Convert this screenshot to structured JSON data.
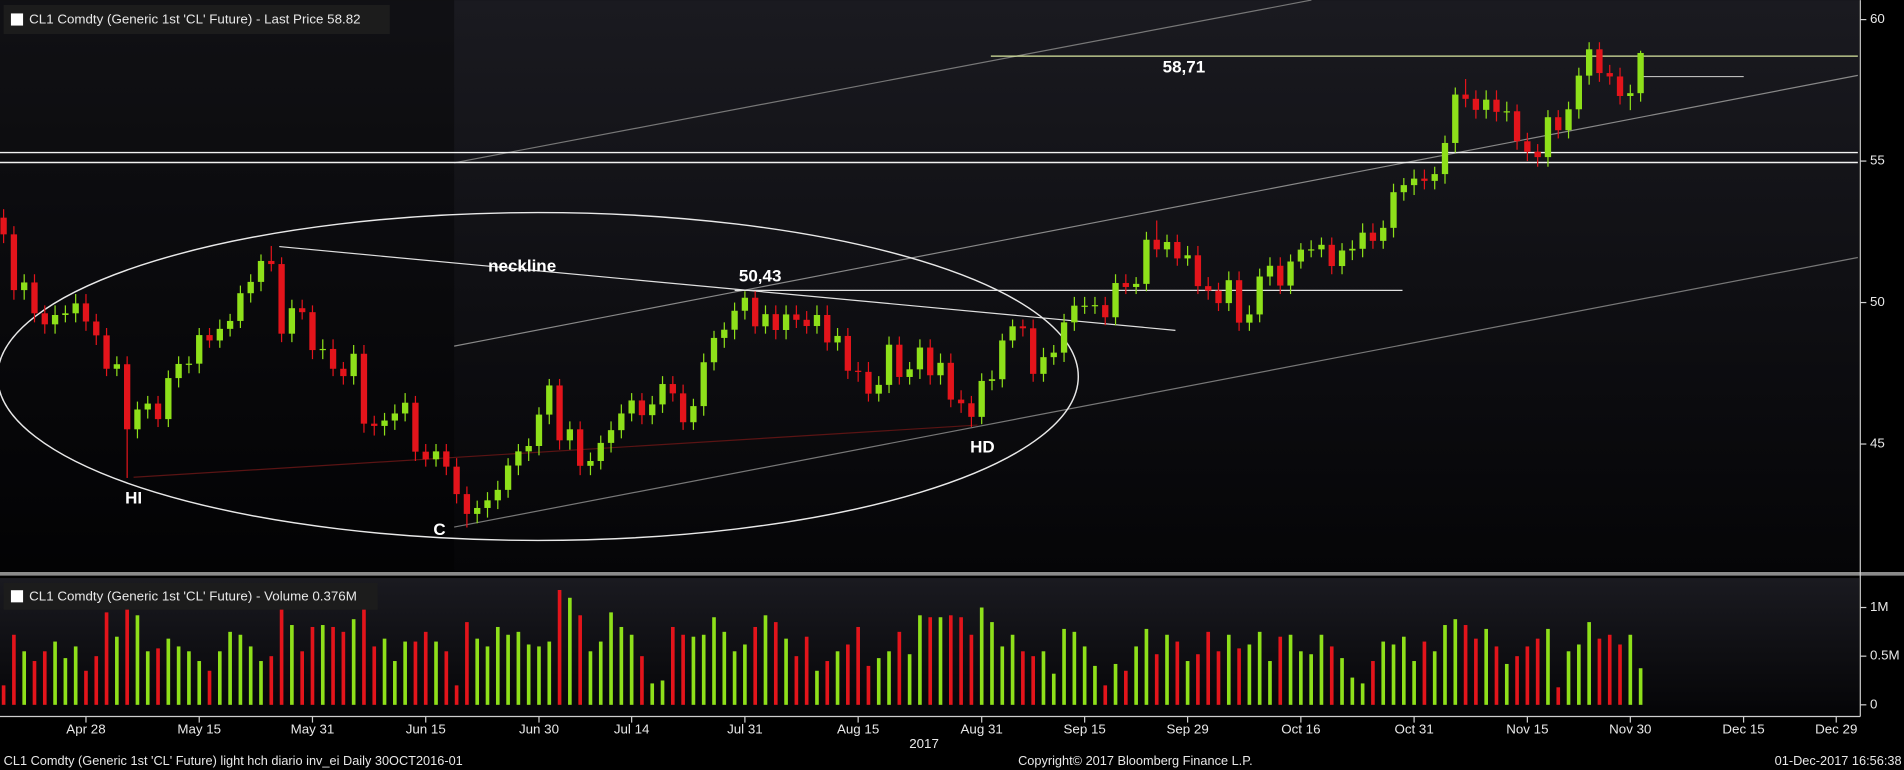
{
  "x_axis": {
    "xlim": [
      -0.35,
      180.1
    ],
    "year_label": "2017",
    "xticks": [
      {
        "value": 8,
        "label": "Apr 28"
      },
      {
        "value": 19,
        "label": "May 15"
      },
      {
        "value": 30,
        "label": "May 31"
      },
      {
        "value": 41,
        "label": "Jun 15"
      },
      {
        "value": 52,
        "label": "Jun 30"
      },
      {
        "value": 61,
        "label": "Jul 14"
      },
      {
        "value": 72,
        "label": "Jul 31"
      },
      {
        "value": 83,
        "label": "Aug 15"
      },
      {
        "value": 95,
        "label": "Aug 31"
      },
      {
        "value": 105,
        "label": "Sep 15"
      },
      {
        "value": 115,
        "label": "Sep 29"
      },
      {
        "value": 126,
        "label": "Oct 16"
      },
      {
        "value": 137,
        "label": "Oct 31"
      },
      {
        "value": 148,
        "label": "Nov 15"
      },
      {
        "value": 158,
        "label": "Nov 30"
      },
      {
        "value": 169,
        "label": "Dec 15"
      },
      {
        "value": 178,
        "label": "Dec 29"
      }
    ]
  },
  "chart_data": [
    {
      "type": "candlestick",
      "title": "CL1 Comdty (Generic 1st 'CL' Future) - Last Price 58.82",
      "up_color": "#8ee01a",
      "down_color": "#e3141b",
      "ylim": [
        40.52,
        60.69
      ],
      "yticks": [
        45,
        50,
        55,
        60
      ],
      "open": [
        53.0,
        52.41,
        50.44,
        50.71,
        49.62,
        49.23,
        49.56,
        49.62,
        49.97,
        49.33,
        48.84,
        47.66,
        47.82,
        45.52,
        46.22,
        46.43,
        45.88,
        47.33,
        47.83,
        47.84,
        48.85,
        48.66,
        49.07,
        49.35,
        50.33,
        50.73,
        51.47,
        51.36,
        48.9,
        49.8,
        49.66,
        48.32,
        48.36,
        47.66,
        47.4,
        48.19,
        45.72,
        45.64,
        45.83,
        46.08,
        46.46,
        44.73,
        44.46,
        44.74,
        44.2,
        43.23,
        42.53,
        42.74,
        43.01,
        43.38,
        44.24,
        44.74,
        44.93,
        46.04,
        47.07,
        45.13,
        45.52,
        44.23,
        44.4,
        45.04,
        45.49,
        46.08,
        46.54,
        46.02,
        46.4,
        47.12,
        46.79,
        45.77,
        46.34,
        47.89,
        48.75,
        49.04,
        49.71,
        50.17,
        49.16,
        49.59,
        49.03,
        49.58,
        49.39,
        49.17,
        49.56,
        48.59,
        48.82,
        47.59,
        47.55,
        46.78,
        47.09,
        48.51,
        47.37,
        47.64,
        48.41,
        47.43,
        47.87,
        46.57,
        46.44,
        45.96,
        47.23,
        47.29,
        48.66,
        49.16,
        49.09,
        47.48,
        48.07,
        48.23,
        49.3,
        49.89,
        49.89,
        49.91,
        49.48,
        50.69,
        50.55,
        50.66,
        52.22,
        51.88,
        52.14,
        51.56,
        51.67,
        50.58,
        50.42,
        49.98,
        50.79,
        49.29,
        49.58,
        50.92,
        51.3,
        50.6,
        51.45,
        51.87,
        51.88,
        52.04,
        51.29,
        51.84,
        51.9,
        52.47,
        52.18,
        52.64,
        53.9,
        54.15,
        54.38,
        54.3,
        54.54,
        55.64,
        57.35,
        57.2,
        56.81,
        57.17,
        56.74,
        56.76,
        55.7,
        55.33,
        55.14,
        56.55,
        56.09,
        56.83,
        58.02,
        58.95,
        58.11,
        57.99,
        57.3,
        57.4
      ],
      "high": [
        53.3,
        52.7,
        51.0,
        51.0,
        49.9,
        49.9,
        49.9,
        50.3,
        50.3,
        49.6,
        49.1,
        48.1,
        48.1,
        46.5,
        46.7,
        46.7,
        47.6,
        48.1,
        48.1,
        49.1,
        49.1,
        49.4,
        49.6,
        50.6,
        51.0,
        51.7,
        52.0,
        51.6,
        50.1,
        50.1,
        49.9,
        48.7,
        48.7,
        47.9,
        48.5,
        48.5,
        46.0,
        46.1,
        46.4,
        46.8,
        46.7,
        45.0,
        45.0,
        45.0,
        44.5,
        43.5,
        43.0,
        43.3,
        43.7,
        44.5,
        45.0,
        45.2,
        46.3,
        47.3,
        47.3,
        45.8,
        45.8,
        44.7,
        45.3,
        45.8,
        46.4,
        46.8,
        46.8,
        46.7,
        47.4,
        47.4,
        47.1,
        46.6,
        48.2,
        49.0,
        49.3,
        50.0,
        50.4,
        50.4,
        49.9,
        49.9,
        49.9,
        49.9,
        49.7,
        49.9,
        49.9,
        49.1,
        49.1,
        47.9,
        47.9,
        47.4,
        48.8,
        48.8,
        47.9,
        48.7,
        48.7,
        48.2,
        48.2,
        46.9,
        46.7,
        47.5,
        47.6,
        48.9,
        49.4,
        49.4,
        49.4,
        48.4,
        48.5,
        49.6,
        50.2,
        50.2,
        50.2,
        50.2,
        51.0,
        51.0,
        50.9,
        52.5,
        52.9,
        52.4,
        52.4,
        52.0,
        52.0,
        50.9,
        50.7,
        51.1,
        51.1,
        49.9,
        51.2,
        51.6,
        51.6,
        51.7,
        52.1,
        52.2,
        52.3,
        52.3,
        52.1,
        52.2,
        52.8,
        52.8,
        52.9,
        54.2,
        54.4,
        54.7,
        54.7,
        54.8,
        55.9,
        57.6,
        57.9,
        57.5,
        57.5,
        57.5,
        57.1,
        57.0,
        56.0,
        55.6,
        56.8,
        56.8,
        57.1,
        58.3,
        59.2,
        59.2,
        58.4,
        58.3,
        57.7,
        58.9
      ],
      "low": [
        52.1,
        50.1,
        50.1,
        49.3,
        48.9,
        48.9,
        49.3,
        49.3,
        49.0,
        48.5,
        47.4,
        47.4,
        43.8,
        45.2,
        45.9,
        45.6,
        45.6,
        47.0,
        47.5,
        47.5,
        48.4,
        48.4,
        48.8,
        49.1,
        50.0,
        50.4,
        51.1,
        48.6,
        48.6,
        49.4,
        48.0,
        48.0,
        47.4,
        47.1,
        47.1,
        45.4,
        45.3,
        45.3,
        45.5,
        45.8,
        44.4,
        44.2,
        44.2,
        43.9,
        42.9,
        42.05,
        42.2,
        42.4,
        42.7,
        43.1,
        43.9,
        44.4,
        44.6,
        45.7,
        44.8,
        44.8,
        43.9,
        43.9,
        44.1,
        44.7,
        45.2,
        45.8,
        45.7,
        45.7,
        46.1,
        46.5,
        45.5,
        45.5,
        46.0,
        47.6,
        48.4,
        48.7,
        49.4,
        48.9,
        48.9,
        48.7,
        48.7,
        49.1,
        48.9,
        48.9,
        48.3,
        48.3,
        47.3,
        47.2,
        46.5,
        46.5,
        46.8,
        47.1,
        47.1,
        47.3,
        47.1,
        47.1,
        46.3,
        46.1,
        45.6,
        45.7,
        46.9,
        47.0,
        48.4,
        48.8,
        47.2,
        47.2,
        47.8,
        47.9,
        49.0,
        49.6,
        49.6,
        49.2,
        49.2,
        50.3,
        50.3,
        50.4,
        51.6,
        51.6,
        51.3,
        51.3,
        50.3,
        50.1,
        49.7,
        49.7,
        49.0,
        49.0,
        49.3,
        50.6,
        50.3,
        50.3,
        51.2,
        51.6,
        51.6,
        51.0,
        51.0,
        51.5,
        51.6,
        51.9,
        51.9,
        52.3,
        53.6,
        53.8,
        54.0,
        54.0,
        54.2,
        55.3,
        56.9,
        56.5,
        56.5,
        56.4,
        56.4,
        55.4,
        55.0,
        54.8,
        54.8,
        55.8,
        55.8,
        56.5,
        57.7,
        57.8,
        57.7,
        57.0,
        56.8,
        57.1
      ],
      "close": [
        52.41,
        50.44,
        50.71,
        49.62,
        49.23,
        49.56,
        49.62,
        49.97,
        49.33,
        48.84,
        47.66,
        47.82,
        45.52,
        46.22,
        46.43,
        45.88,
        47.33,
        47.83,
        47.84,
        48.85,
        48.66,
        49.07,
        49.35,
        50.33,
        50.73,
        51.47,
        51.36,
        48.9,
        49.8,
        49.66,
        48.32,
        48.36,
        47.66,
        47.4,
        48.19,
        45.72,
        45.64,
        45.83,
        46.08,
        46.46,
        44.73,
        44.46,
        44.74,
        44.2,
        43.23,
        42.53,
        42.74,
        43.01,
        43.38,
        44.24,
        44.74,
        44.93,
        46.04,
        47.07,
        45.13,
        45.52,
        44.23,
        44.4,
        45.04,
        45.49,
        46.08,
        46.54,
        46.02,
        46.4,
        47.12,
        46.79,
        45.77,
        46.34,
        47.89,
        48.75,
        49.04,
        49.71,
        50.17,
        49.16,
        49.59,
        49.03,
        49.58,
        49.39,
        49.17,
        49.56,
        48.59,
        48.82,
        47.59,
        47.55,
        46.78,
        47.09,
        48.51,
        47.37,
        47.64,
        48.41,
        47.43,
        47.87,
        46.57,
        46.44,
        45.96,
        47.23,
        47.29,
        48.66,
        49.16,
        49.09,
        47.48,
        48.07,
        48.23,
        49.3,
        49.89,
        49.89,
        49.91,
        49.48,
        50.69,
        50.55,
        50.66,
        52.22,
        51.88,
        52.14,
        51.56,
        51.67,
        50.58,
        50.42,
        49.98,
        50.79,
        49.29,
        49.58,
        50.92,
        51.3,
        50.6,
        51.45,
        51.87,
        51.88,
        52.04,
        51.29,
        51.84,
        51.9,
        52.47,
        52.18,
        52.64,
        53.9,
        54.15,
        54.38,
        54.3,
        54.54,
        55.64,
        57.35,
        57.2,
        56.81,
        57.17,
        56.74,
        56.76,
        55.7,
        55.33,
        55.14,
        56.55,
        56.09,
        56.83,
        58.02,
        58.95,
        58.11,
        57.99,
        57.3,
        57.4,
        58.82
      ],
      "levels": [
        {
          "label": "58,71",
          "value": 58.71
        },
        {
          "label": "50,43",
          "value": 50.43
        }
      ],
      "support_lines": [
        55.3,
        54.95
      ],
      "annotations": [
        "neckline",
        "HI",
        "C",
        "HD"
      ]
    },
    {
      "type": "bar",
      "title": "CL1 Comdty (Generic 1st 'CL' Future) - Volume 0.376M",
      "ylim": [
        -0.12,
        1.29
      ],
      "yticks": [
        0,
        {
          "value": 0.5,
          "label": "0.5M"
        },
        {
          "value": 1,
          "label": "1M"
        }
      ],
      "values": [
        0.2,
        0.72,
        0.55,
        0.45,
        0.55,
        0.65,
        0.48,
        0.6,
        0.35,
        0.5,
        0.95,
        0.7,
        1.02,
        0.92,
        0.55,
        0.58,
        0.68,
        0.6,
        0.55,
        0.45,
        0.35,
        0.55,
        0.75,
        0.72,
        0.6,
        0.45,
        0.5,
        1.1,
        0.82,
        0.55,
        0.8,
        0.82,
        0.8,
        0.75,
        0.88,
        0.98,
        0.6,
        0.68,
        0.45,
        0.65,
        0.65,
        0.75,
        0.65,
        0.55,
        0.2,
        0.85,
        0.68,
        0.6,
        0.8,
        0.72,
        0.75,
        0.62,
        0.6,
        0.65,
        1.18,
        1.1,
        0.92,
        0.55,
        0.65,
        0.95,
        0.8,
        0.72,
        0.5,
        0.22,
        0.25,
        0.8,
        0.72,
        0.7,
        0.72,
        0.9,
        0.75,
        0.55,
        0.62,
        0.8,
        0.92,
        0.85,
        0.68,
        0.5,
        0.7,
        0.35,
        0.45,
        0.55,
        0.62,
        0.8,
        0.4,
        0.48,
        0.55,
        0.75,
        0.52,
        0.92,
        0.9,
        0.9,
        0.92,
        0.9,
        0.72,
        1.0,
        0.85,
        0.6,
        0.72,
        0.55,
        0.5,
        0.55,
        0.32,
        0.78,
        0.75,
        0.6,
        0.4,
        0.2,
        0.42,
        0.35,
        0.6,
        0.78,
        0.52,
        0.72,
        0.65,
        0.45,
        0.52,
        0.75,
        0.55,
        0.72,
        0.58,
        0.62,
        0.75,
        0.45,
        0.7,
        0.72,
        0.55,
        0.52,
        0.72,
        0.6,
        0.48,
        0.28,
        0.22,
        0.45,
        0.65,
        0.62,
        0.7,
        0.45,
        0.65,
        0.55,
        0.82,
        0.88,
        0.82,
        0.68,
        0.78,
        0.6,
        0.42,
        0.5,
        0.6,
        0.68,
        0.78,
        0.18,
        0.55,
        0.62,
        0.85,
        0.68,
        0.72,
        0.62,
        0.72,
        0.376
      ]
    }
  ],
  "footer": {
    "left": "CL1 Comdty (Generic 1st 'CL' Future) light hch diario inv_ei  Daily 30OCT2016-01",
    "center": "Copyright© 2017 Bloomberg Finance L.P.",
    "right": "01-Dec-2017 16:56:38"
  }
}
